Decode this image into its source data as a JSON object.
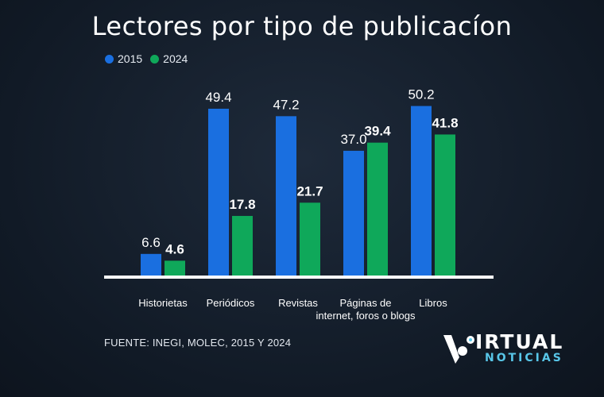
{
  "chart_data": {
    "type": "bar",
    "title": "Lectores por tipo de publicacíon",
    "categories": [
      "Historietas",
      "Periódicos",
      "Revistas",
      "Páginas de internet, foros o blogs",
      "Libros"
    ],
    "category_lines": [
      [
        "Historietas"
      ],
      [
        "Periódicos"
      ],
      [
        "Revistas"
      ],
      [
        "Páginas de",
        "internet, foros o blogs"
      ],
      [
        "Libros"
      ]
    ],
    "series": [
      {
        "name": "2015",
        "values": [
          6.6,
          49.4,
          47.2,
          37.0,
          50.2
        ],
        "labels": [
          "6.6",
          "49.4",
          "47.2",
          "37.0",
          "50.2"
        ],
        "color": "#1a6fe0"
      },
      {
        "name": "2024",
        "values": [
          4.6,
          17.8,
          21.7,
          39.4,
          41.8
        ],
        "labels": [
          "4.6",
          "17.8",
          "21.7",
          "39.4",
          "41.8"
        ],
        "color": "#0fa85a"
      }
    ],
    "ylim": [
      0,
      55
    ],
    "legend_position": "top-left",
    "grid": false
  },
  "source": "FUENTE: INEGI, MOLEC, 2015 Y 2024",
  "logo": {
    "line1": "IRTUAL",
    "line2": "NOTICIAS",
    "accent": "#58c6e8"
  }
}
